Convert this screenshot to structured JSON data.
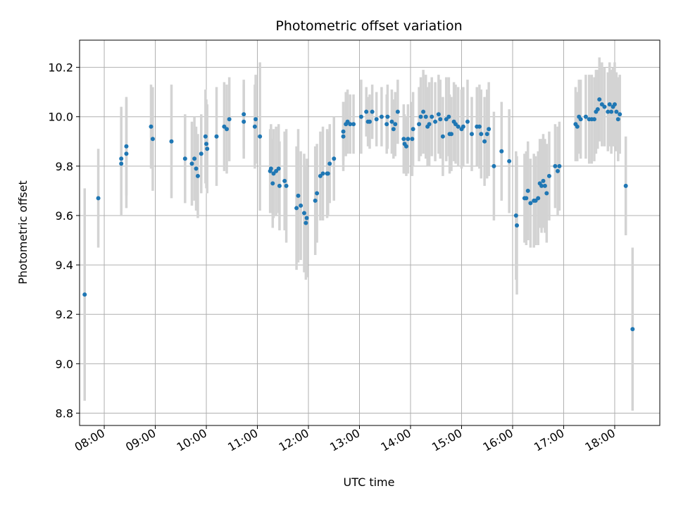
{
  "chart_data": {
    "type": "scatter",
    "title": "Photometric offset variation",
    "xlabel": "UTC time",
    "ylabel": "Photometric offset",
    "xlim": [
      "07:31",
      "18:53"
    ],
    "ylim": [
      8.75,
      10.31
    ],
    "grid": true,
    "colors": {
      "marker": "#1f77b4",
      "errorbar": "#d3d3d3",
      "grid": "#b0b0b0"
    },
    "x_ticks": [
      "08:00",
      "09:00",
      "10:00",
      "11:00",
      "12:00",
      "13:00",
      "14:00",
      "15:00",
      "16:00",
      "17:00",
      "18:00"
    ],
    "y_ticks": [
      "8.8",
      "9.0",
      "9.2",
      "9.4",
      "9.6",
      "9.8",
      "10.0",
      "10.2"
    ],
    "series": [
      {
        "points": [
          {
            "x": "07:37",
            "y": 9.28,
            "err": 0.43
          },
          {
            "x": "07:53",
            "y": 9.67,
            "err": 0.2
          },
          {
            "x": "08:20",
            "y": 9.81,
            "err": 0.21
          },
          {
            "x": "08:20",
            "y": 9.83,
            "err": 0.21
          },
          {
            "x": "08:26",
            "y": 9.85,
            "err": 0.22
          },
          {
            "x": "08:26",
            "y": 9.88,
            "err": 0.2
          },
          {
            "x": "08:55",
            "y": 9.96,
            "err": 0.17
          },
          {
            "x": "08:57",
            "y": 9.91,
            "err": 0.21
          },
          {
            "x": "09:19",
            "y": 9.9,
            "err": 0.23
          },
          {
            "x": "09:35",
            "y": 9.83,
            "err": 0.18
          },
          {
            "x": "09:43",
            "y": 9.81,
            "err": 0.17
          },
          {
            "x": "09:46",
            "y": 9.83,
            "err": 0.17
          },
          {
            "x": "09:48",
            "y": 9.79,
            "err": 0.17
          },
          {
            "x": "09:50",
            "y": 9.76,
            "err": 0.17
          },
          {
            "x": "09:54",
            "y": 9.85,
            "err": 0.16
          },
          {
            "x": "09:59",
            "y": 9.92,
            "err": 0.19
          },
          {
            "x": "10:00",
            "y": 9.89,
            "err": 0.18
          },
          {
            "x": "10:01",
            "y": 9.87,
            "err": 0.18
          },
          {
            "x": "10:12",
            "y": 9.92,
            "err": 0.2
          },
          {
            "x": "10:21",
            "y": 9.96,
            "err": 0.18
          },
          {
            "x": "10:24",
            "y": 9.95,
            "err": 0.18
          },
          {
            "x": "10:27",
            "y": 9.99,
            "err": 0.17
          },
          {
            "x": "10:44",
            "y": 10.01,
            "err": 0.14
          },
          {
            "x": "10:44",
            "y": 9.98,
            "err": 0.15
          },
          {
            "x": "10:57",
            "y": 9.96,
            "err": 0.17
          },
          {
            "x": "10:58",
            "y": 9.99,
            "err": 0.18
          },
          {
            "x": "11:03",
            "y": 9.92,
            "err": 0.3
          },
          {
            "x": "11:15",
            "y": 9.78,
            "err": 0.17
          },
          {
            "x": "11:16",
            "y": 9.79,
            "err": 0.18
          },
          {
            "x": "11:18",
            "y": 9.73,
            "err": 0.18
          },
          {
            "x": "11:19",
            "y": 9.77,
            "err": 0.18
          },
          {
            "x": "11:22",
            "y": 9.78,
            "err": 0.18
          },
          {
            "x": "11:25",
            "y": 9.79,
            "err": 0.18
          },
          {
            "x": "11:26",
            "y": 9.72,
            "err": 0.18
          },
          {
            "x": "11:32",
            "y": 9.74,
            "err": 0.2
          },
          {
            "x": "11:34",
            "y": 9.72,
            "err": 0.23
          },
          {
            "x": "11:46",
            "y": 9.63,
            "err": 0.25
          },
          {
            "x": "11:48",
            "y": 9.68,
            "err": 0.27
          },
          {
            "x": "11:51",
            "y": 9.64,
            "err": 0.22
          },
          {
            "x": "11:55",
            "y": 9.61,
            "err": 0.24
          },
          {
            "x": "11:57",
            "y": 9.57,
            "err": 0.23
          },
          {
            "x": "11:58",
            "y": 9.59,
            "err": 0.24
          },
          {
            "x": "12:08",
            "y": 9.66,
            "err": 0.22
          },
          {
            "x": "12:10",
            "y": 9.69,
            "err": 0.2
          },
          {
            "x": "12:14",
            "y": 9.76,
            "err": 0.18
          },
          {
            "x": "12:17",
            "y": 9.77,
            "err": 0.19
          },
          {
            "x": "12:22",
            "y": 9.77,
            "err": 0.18
          },
          {
            "x": "12:23",
            "y": 9.77,
            "err": 0.17
          },
          {
            "x": "12:25",
            "y": 9.81,
            "err": 0.16
          },
          {
            "x": "12:30",
            "y": 9.83,
            "err": 0.17
          },
          {
            "x": "12:41",
            "y": 9.94,
            "err": 0.12
          },
          {
            "x": "12:41",
            "y": 9.92,
            "err": 0.14
          },
          {
            "x": "12:44",
            "y": 9.97,
            "err": 0.13
          },
          {
            "x": "12:46",
            "y": 9.98,
            "err": 0.13
          },
          {
            "x": "12:49",
            "y": 9.97,
            "err": 0.12
          },
          {
            "x": "12:53",
            "y": 9.97,
            "err": 0.12
          },
          {
            "x": "13:02",
            "y": 10.0,
            "err": 0.15
          },
          {
            "x": "13:08",
            "y": 10.02,
            "err": 0.1
          },
          {
            "x": "13:10",
            "y": 9.98,
            "err": 0.1
          },
          {
            "x": "13:12",
            "y": 9.98,
            "err": 0.11
          },
          {
            "x": "13:15",
            "y": 10.02,
            "err": 0.11
          },
          {
            "x": "13:20",
            "y": 9.99,
            "err": 0.11
          },
          {
            "x": "13:26",
            "y": 10.0,
            "err": 0.12
          },
          {
            "x": "13:32",
            "y": 9.97,
            "err": 0.12
          },
          {
            "x": "13:33",
            "y": 10.0,
            "err": 0.13
          },
          {
            "x": "13:38",
            "y": 9.98,
            "err": 0.13
          },
          {
            "x": "13:40",
            "y": 9.95,
            "err": 0.12
          },
          {
            "x": "13:42",
            "y": 9.97,
            "err": 0.13
          },
          {
            "x": "13:45",
            "y": 10.02,
            "err": 0.13
          },
          {
            "x": "13:52",
            "y": 9.91,
            "err": 0.14
          },
          {
            "x": "13:53",
            "y": 9.89,
            "err": 0.12
          },
          {
            "x": "13:55",
            "y": 9.88,
            "err": 0.12
          },
          {
            "x": "13:57",
            "y": 9.91,
            "err": 0.14
          },
          {
            "x": "14:02",
            "y": 9.91,
            "err": 0.15
          },
          {
            "x": "14:03",
            "y": 9.95,
            "err": 0.15
          },
          {
            "x": "14:10",
            "y": 9.97,
            "err": 0.15
          },
          {
            "x": "14:12",
            "y": 10.0,
            "err": 0.16
          },
          {
            "x": "14:15",
            "y": 10.02,
            "err": 0.17
          },
          {
            "x": "14:18",
            "y": 10.0,
            "err": 0.17
          },
          {
            "x": "14:20",
            "y": 9.96,
            "err": 0.16
          },
          {
            "x": "14:22",
            "y": 9.97,
            "err": 0.17
          },
          {
            "x": "14:25",
            "y": 10.0,
            "err": 0.16
          },
          {
            "x": "14:29",
            "y": 9.98,
            "err": 0.16
          },
          {
            "x": "14:33",
            "y": 10.01,
            "err": 0.16
          },
          {
            "x": "14:35",
            "y": 9.99,
            "err": 0.16
          },
          {
            "x": "14:38",
            "y": 9.92,
            "err": 0.16
          },
          {
            "x": "14:42",
            "y": 9.99,
            "err": 0.17
          },
          {
            "x": "14:45",
            "y": 10.0,
            "err": 0.16
          },
          {
            "x": "14:46",
            "y": 9.93,
            "err": 0.16
          },
          {
            "x": "14:48",
            "y": 9.93,
            "err": 0.15
          },
          {
            "x": "14:51",
            "y": 9.98,
            "err": 0.16
          },
          {
            "x": "14:53",
            "y": 9.97,
            "err": 0.16
          },
          {
            "x": "14:56",
            "y": 9.96,
            "err": 0.16
          },
          {
            "x": "15:00",
            "y": 9.95,
            "err": 0.16
          },
          {
            "x": "15:02",
            "y": 9.96,
            "err": 0.16
          },
          {
            "x": "15:07",
            "y": 9.98,
            "err": 0.17
          },
          {
            "x": "15:12",
            "y": 9.93,
            "err": 0.15
          },
          {
            "x": "15:18",
            "y": 9.96,
            "err": 0.16
          },
          {
            "x": "15:21",
            "y": 9.96,
            "err": 0.17
          },
          {
            "x": "15:23",
            "y": 9.93,
            "err": 0.18
          },
          {
            "x": "15:27",
            "y": 9.9,
            "err": 0.18
          },
          {
            "x": "15:30",
            "y": 9.93,
            "err": 0.18
          },
          {
            "x": "15:32",
            "y": 9.95,
            "err": 0.19
          },
          {
            "x": "15:38",
            "y": 9.8,
            "err": 0.22
          },
          {
            "x": "15:47",
            "y": 9.86,
            "err": 0.2
          },
          {
            "x": "15:56",
            "y": 9.82,
            "err": 0.21
          },
          {
            "x": "16:04",
            "y": 9.6,
            "err": 0.26
          },
          {
            "x": "16:05",
            "y": 9.56,
            "err": 0.28
          },
          {
            "x": "16:14",
            "y": 9.67,
            "err": 0.18
          },
          {
            "x": "16:16",
            "y": 9.67,
            "err": 0.19
          },
          {
            "x": "16:18",
            "y": 9.7,
            "err": 0.2
          },
          {
            "x": "16:21",
            "y": 9.65,
            "err": 0.18
          },
          {
            "x": "16:25",
            "y": 9.66,
            "err": 0.19
          },
          {
            "x": "16:27",
            "y": 9.66,
            "err": 0.18
          },
          {
            "x": "16:30",
            "y": 9.67,
            "err": 0.19
          },
          {
            "x": "16:32",
            "y": 9.73,
            "err": 0.18
          },
          {
            "x": "16:34",
            "y": 9.72,
            "err": 0.19
          },
          {
            "x": "16:36",
            "y": 9.74,
            "err": 0.19
          },
          {
            "x": "16:38",
            "y": 9.72,
            "err": 0.19
          },
          {
            "x": "16:40",
            "y": 9.69,
            "err": 0.2
          },
          {
            "x": "16:43",
            "y": 9.76,
            "err": 0.18
          },
          {
            "x": "16:50",
            "y": 9.8,
            "err": 0.17
          },
          {
            "x": "16:53",
            "y": 9.78,
            "err": 0.18
          },
          {
            "x": "16:55",
            "y": 9.8,
            "err": 0.18
          },
          {
            "x": "17:14",
            "y": 9.97,
            "err": 0.15
          },
          {
            "x": "17:16",
            "y": 9.96,
            "err": 0.14
          },
          {
            "x": "17:18",
            "y": 10.0,
            "err": 0.15
          },
          {
            "x": "17:20",
            "y": 9.99,
            "err": 0.16
          },
          {
            "x": "17:26",
            "y": 10.0,
            "err": 0.17
          },
          {
            "x": "17:30",
            "y": 9.99,
            "err": 0.18
          },
          {
            "x": "17:33",
            "y": 9.99,
            "err": 0.18
          },
          {
            "x": "17:36",
            "y": 9.99,
            "err": 0.17
          },
          {
            "x": "17:38",
            "y": 10.02,
            "err": 0.17
          },
          {
            "x": "17:40",
            "y": 10.03,
            "err": 0.16
          },
          {
            "x": "17:42",
            "y": 10.07,
            "err": 0.17
          },
          {
            "x": "17:45",
            "y": 10.05,
            "err": 0.17
          },
          {
            "x": "17:48",
            "y": 10.04,
            "err": 0.16
          },
          {
            "x": "17:52",
            "y": 10.02,
            "err": 0.16
          },
          {
            "x": "17:54",
            "y": 10.05,
            "err": 0.17
          },
          {
            "x": "17:56",
            "y": 10.02,
            "err": 0.17
          },
          {
            "x": "17:58",
            "y": 10.04,
            "err": 0.16
          },
          {
            "x": "18:00",
            "y": 10.05,
            "err": 0.17
          },
          {
            "x": "18:02",
            "y": 10.02,
            "err": 0.16
          },
          {
            "x": "18:04",
            "y": 9.99,
            "err": 0.17
          },
          {
            "x": "18:06",
            "y": 10.01,
            "err": 0.16
          },
          {
            "x": "18:13",
            "y": 9.72,
            "err": 0.2
          },
          {
            "x": "18:21",
            "y": 9.14,
            "err": 0.33
          }
        ]
      }
    ]
  }
}
